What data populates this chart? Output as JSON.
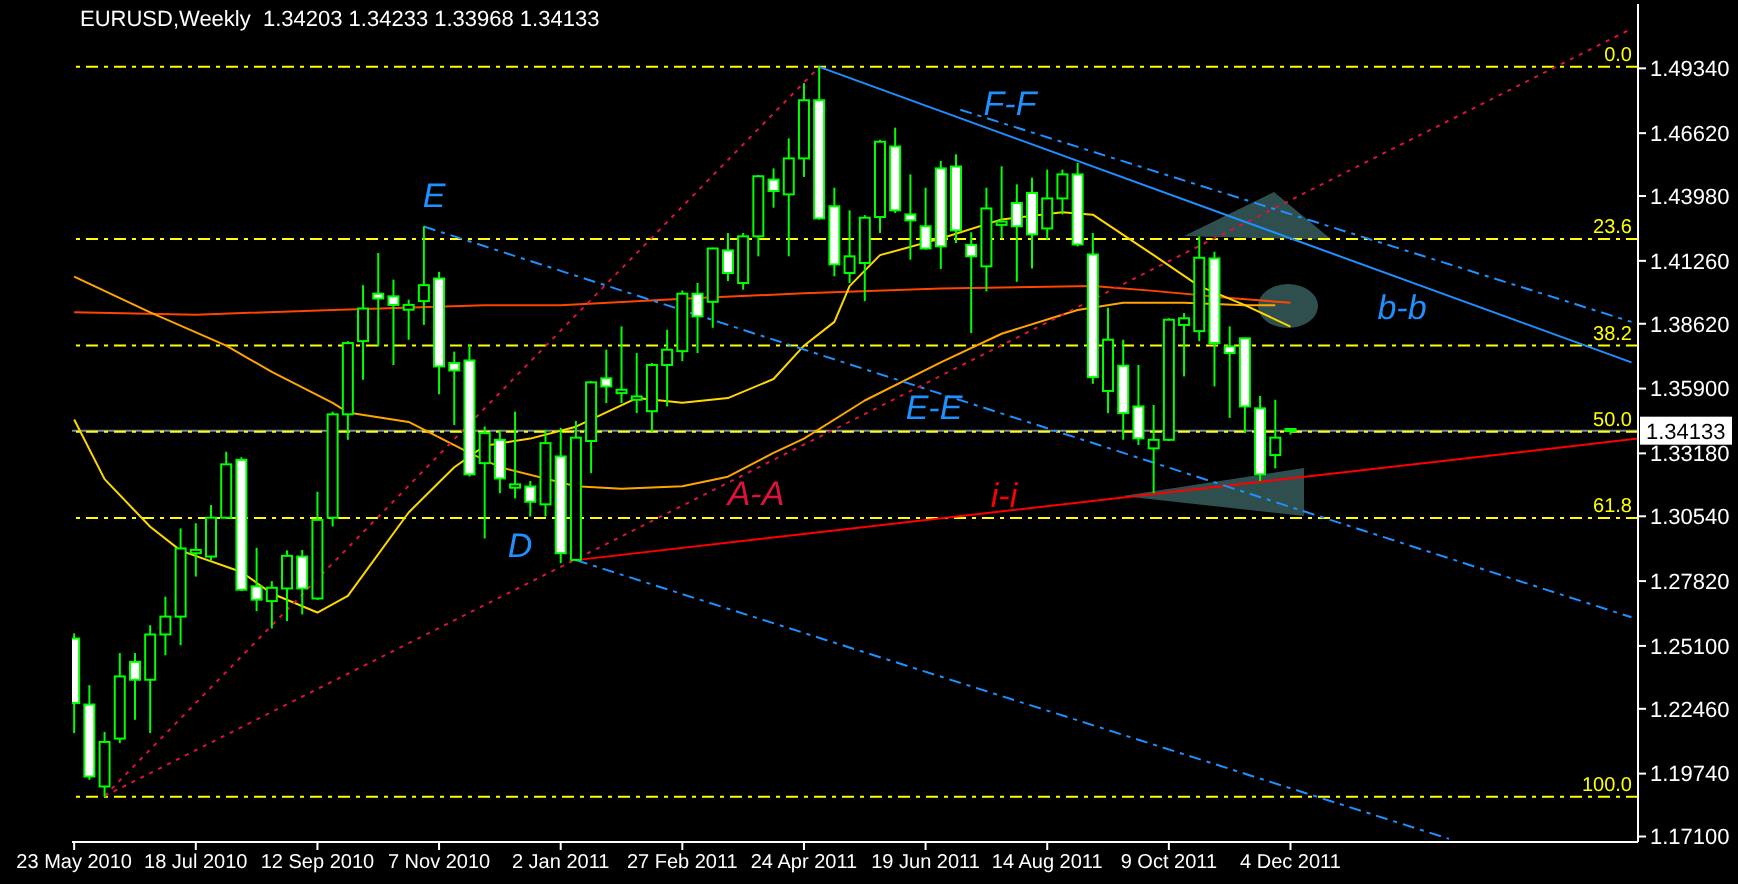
{
  "chart_data": {
    "type": "candlestick",
    "title": "EURUSD,Weekly  1.34203 1.34233 1.33968 1.34133",
    "color": "#00ff00",
    "marker": "none",
    "x": [
      "2010-05-23",
      "2010-05-30",
      "2010-06-06",
      "2010-06-13",
      "2010-06-20",
      "2010-06-27",
      "2010-07-04",
      "2010-07-11",
      "2010-07-18",
      "2010-07-25",
      "2010-08-01",
      "2010-08-08",
      "2010-08-15",
      "2010-08-22",
      "2010-08-29",
      "2010-09-05",
      "2010-09-12",
      "2010-09-19",
      "2010-09-26",
      "2010-10-03",
      "2010-10-10",
      "2010-10-17",
      "2010-10-24",
      "2010-10-31",
      "2010-11-07",
      "2010-11-14",
      "2010-11-21",
      "2010-11-28",
      "2010-12-05",
      "2010-12-12",
      "2010-12-19",
      "2010-12-26",
      "2011-01-02",
      "2011-01-09",
      "2011-01-16",
      "2011-01-23",
      "2011-01-30",
      "2011-02-06",
      "2011-02-13",
      "2011-02-20",
      "2011-02-27",
      "2011-03-06",
      "2011-03-13",
      "2011-03-20",
      "2011-03-27",
      "2011-04-03",
      "2011-04-10",
      "2011-04-17",
      "2011-04-24",
      "2011-05-01",
      "2011-05-08",
      "2011-05-15",
      "2011-05-22",
      "2011-05-29",
      "2011-06-05",
      "2011-06-12",
      "2011-06-19",
      "2011-06-26",
      "2011-07-03",
      "2011-07-10",
      "2011-07-17",
      "2011-07-24",
      "2011-07-31",
      "2011-08-07",
      "2011-08-14",
      "2011-08-21",
      "2011-08-28",
      "2011-09-04",
      "2011-09-11",
      "2011-09-18",
      "2011-09-25",
      "2011-10-02",
      "2011-10-09",
      "2011-10-16",
      "2011-10-23",
      "2011-10-30",
      "2011-11-06",
      "2011-11-13",
      "2011-11-20",
      "2011-11-27",
      "2011-12-04"
    ],
    "ohlc": [
      [
        1.2541,
        1.2563,
        1.2144,
        1.227
      ],
      [
        1.2264,
        1.2345,
        1.1948,
        1.1962
      ],
      [
        1.192,
        1.2149,
        1.1876,
        1.2107
      ],
      [
        1.2121,
        1.248,
        1.2102,
        1.2382
      ],
      [
        1.2443,
        1.248,
        1.22,
        1.2368
      ],
      [
        1.2368,
        1.2597,
        1.2144,
        1.2558
      ],
      [
        1.2558,
        1.2717,
        1.2471,
        1.2633
      ],
      [
        1.2633,
        1.3003,
        1.2513,
        1.2919
      ],
      [
        1.2899,
        1.3025,
        1.2801,
        1.2913
      ],
      [
        1.2885,
        1.3101,
        1.2866,
        1.3048
      ],
      [
        1.3048,
        1.3325,
        1.3045,
        1.3272
      ],
      [
        1.3291,
        1.3302,
        1.274,
        1.2746
      ],
      [
        1.276,
        1.2922,
        1.2656,
        1.2704
      ],
      [
        1.2698,
        1.2782,
        1.2583,
        1.2754
      ],
      [
        1.2751,
        1.2911,
        1.2614,
        1.2888
      ],
      [
        1.2885,
        1.2913,
        1.2642,
        1.2751
      ],
      [
        1.2709,
        1.3157,
        1.2703,
        1.3039
      ],
      [
        1.3048,
        1.3493,
        1.3011,
        1.3482
      ],
      [
        1.3482,
        1.3789,
        1.3375,
        1.3781
      ],
      [
        1.3789,
        1.4024,
        1.3627,
        1.3926
      ],
      [
        1.3988,
        1.4159,
        1.3767,
        1.3968
      ],
      [
        1.3977,
        1.4047,
        1.3689,
        1.3941
      ],
      [
        1.3921,
        1.3963,
        1.3795,
        1.3941
      ],
      [
        1.3957,
        1.4271,
        1.3857,
        1.4024
      ],
      [
        1.4052,
        1.408,
        1.3566,
        1.3683
      ],
      [
        1.3697,
        1.3745,
        1.3437,
        1.3666
      ],
      [
        1.3708,
        1.3775,
        1.3221,
        1.323
      ],
      [
        1.3277,
        1.3431,
        1.2961,
        1.3403
      ],
      [
        1.3375,
        1.3417,
        1.3151,
        1.3213
      ],
      [
        1.3174,
        1.3493,
        1.3129,
        1.3188
      ],
      [
        1.3179,
        1.3202,
        1.3053,
        1.3115
      ],
      [
        1.3104,
        1.3417,
        1.3053,
        1.3361
      ],
      [
        1.3305,
        1.3425,
        1.2857,
        1.2899
      ],
      [
        1.2871,
        1.3454,
        1.2866,
        1.3384
      ],
      [
        1.337,
        1.3621,
        1.3235,
        1.3616
      ],
      [
        1.3633,
        1.3753,
        1.3529,
        1.3599
      ],
      [
        1.3571,
        1.3851,
        1.3529,
        1.3585
      ],
      [
        1.3543,
        1.3739,
        1.3487,
        1.3557
      ],
      [
        1.3495,
        1.3697,
        1.3409,
        1.3689
      ],
      [
        1.3689,
        1.3837,
        1.3515,
        1.3753
      ],
      [
        1.3747,
        1.4002,
        1.3705,
        1.3988
      ],
      [
        1.3988,
        1.4033,
        1.3739,
        1.3893
      ],
      [
        1.3954,
        1.4181,
        1.3845,
        1.4178
      ],
      [
        1.417,
        1.4243,
        1.4041,
        1.4075
      ],
      [
        1.4033,
        1.4243,
        1.4005,
        1.4229
      ],
      [
        1.4229,
        1.4486,
        1.4145,
        1.4481
      ],
      [
        1.4467,
        1.4514,
        1.4349,
        1.4419
      ],
      [
        1.4405,
        1.464,
        1.4145,
        1.4556
      ],
      [
        1.4556,
        1.4872,
        1.4478,
        1.48
      ],
      [
        1.48,
        1.494,
        1.4299,
        1.4304
      ],
      [
        1.4355,
        1.4433,
        1.4061,
        1.4111
      ],
      [
        1.4075,
        1.4338,
        1.4033,
        1.4145
      ],
      [
        1.4117,
        1.4318,
        1.3957,
        1.4307
      ],
      [
        1.431,
        1.4634,
        1.4243,
        1.4626
      ],
      [
        1.4606,
        1.4685,
        1.4327,
        1.4338
      ],
      [
        1.4321,
        1.4489,
        1.4131,
        1.4296
      ],
      [
        1.4271,
        1.4433,
        1.4173,
        1.4178
      ],
      [
        1.4514,
        1.4545,
        1.4092,
        1.4187
      ],
      [
        1.4522,
        1.4573,
        1.4201,
        1.4254
      ],
      [
        1.4193,
        1.4246,
        1.3823,
        1.4145
      ],
      [
        1.4103,
        1.4433,
        1.3998,
        1.4346
      ],
      [
        1.4277,
        1.4523,
        1.422,
        1.4291
      ],
      [
        1.4369,
        1.4447,
        1.4038,
        1.4271
      ],
      [
        1.4411,
        1.4475,
        1.4094,
        1.4237
      ],
      [
        1.4262,
        1.4509,
        1.4215,
        1.4388
      ],
      [
        1.4388,
        1.4509,
        1.4321,
        1.4489
      ],
      [
        1.4489,
        1.4537,
        1.4187,
        1.4195
      ],
      [
        1.4153,
        1.4243,
        1.361,
        1.3638
      ],
      [
        1.358,
        1.3929,
        1.3487,
        1.3795
      ],
      [
        1.3686,
        1.3795,
        1.3375,
        1.3487
      ],
      [
        1.3515,
        1.3689,
        1.3353,
        1.3381
      ],
      [
        1.3339,
        1.3521,
        1.3151,
        1.3375
      ],
      [
        1.3375,
        1.3885,
        1.337,
        1.3879
      ],
      [
        1.3857,
        1.3907,
        1.3641,
        1.3885
      ],
      [
        1.3831,
        1.4229,
        1.3789,
        1.4139
      ],
      [
        1.4136,
        1.4164,
        1.3599,
        1.3781
      ],
      [
        1.3767,
        1.3851,
        1.3467,
        1.3739
      ],
      [
        1.3801,
        1.3803,
        1.3403,
        1.3515
      ],
      [
        1.3507,
        1.3559,
        1.3202,
        1.323
      ],
      [
        1.3311,
        1.3543,
        1.3255,
        1.3384
      ],
      [
        1.34203,
        1.34233,
        1.33968,
        1.34133
      ]
    ],
    "series": [
      {
        "type": "line",
        "color": "#ff4500",
        "line_style": "solid",
        "x": [
          "2010-05-23",
          "2010-07-18",
          "2010-09-19",
          "2010-11-28",
          "2011-01-02",
          "2011-03-06",
          "2011-04-24",
          "2011-06-26",
          "2011-09-04",
          "2011-10-02",
          "2011-11-06",
          "2011-12-04"
        ],
        "values": [
          1.391,
          1.39,
          1.392,
          1.394,
          1.394,
          1.397,
          1.399,
          1.401,
          1.402,
          1.4,
          1.397,
          1.395
        ]
      },
      {
        "type": "line",
        "color": "#ffa500",
        "line_style": "solid",
        "x": [
          "2010-05-23",
          "2010-06-27",
          "2010-08-01",
          "2010-08-22",
          "2010-09-19",
          "2010-09-26",
          "2010-10-24",
          "2010-11-21",
          "2010-12-05",
          "2011-01-09",
          "2011-01-30",
          "2011-02-27",
          "2011-03-20",
          "2011-04-10",
          "2011-04-24",
          "2011-05-22",
          "2011-06-26",
          "2011-07-24",
          "2011-08-28",
          "2011-09-18",
          "2011-10-16",
          "2011-11-13",
          "2011-11-27"
        ],
        "values": [
          1.406,
          1.391,
          1.377,
          1.366,
          1.353,
          1.349,
          1.345,
          1.332,
          1.326,
          1.318,
          1.317,
          1.318,
          1.322,
          1.332,
          1.338,
          1.354,
          1.37,
          1.382,
          1.392,
          1.395,
          1.395,
          1.394,
          1.394
        ]
      },
      {
        "type": "line",
        "color": "#ffd700",
        "line_style": "solid",
        "x": [
          "2010-05-23",
          "2010-06-06",
          "2010-06-27",
          "2010-07-11",
          "2010-08-08",
          "2010-08-22",
          "2010-09-12",
          "2010-09-26",
          "2010-10-24",
          "2010-11-14",
          "2010-11-28",
          "2010-12-19",
          "2011-01-09",
          "2011-01-23",
          "2011-02-06",
          "2011-02-27",
          "2011-03-20",
          "2011-04-10",
          "2011-04-24",
          "2011-05-08",
          "2011-05-15",
          "2011-05-29",
          "2011-06-26",
          "2011-07-24",
          "2011-08-21",
          "2011-09-04",
          "2011-10-02",
          "2011-10-23",
          "2011-11-13",
          "2011-12-04"
        ],
        "values": [
          1.346,
          1.321,
          1.301,
          1.291,
          1.282,
          1.273,
          1.265,
          1.272,
          1.307,
          1.326,
          1.335,
          1.338,
          1.343,
          1.349,
          1.355,
          1.353,
          1.355,
          1.363,
          1.377,
          1.387,
          1.402,
          1.415,
          1.422,
          1.43,
          1.433,
          1.432,
          1.415,
          1.402,
          1.394,
          1.385
        ]
      },
      {
        "type": "line",
        "color": "#dc143c",
        "line_style": "dotted",
        "x": [
          "2010-06-06",
          "2011-05-01"
        ],
        "values": [
          1.188,
          1.494
        ]
      },
      {
        "type": "line",
        "color": "#dc143c",
        "line_style": "dotted",
        "x": [
          "2010-06-06",
          "2012-05-09"
        ],
        "values": [
          1.188,
          1.51
        ]
      },
      {
        "type": "line",
        "color": "#ff0000",
        "line_style": "solid",
        "x": [
          "2011-01-09",
          "2012-05-12"
        ],
        "values": [
          1.287,
          1.338
        ]
      },
      {
        "type": "line",
        "color": "#1e90ff",
        "line_style": "dashed",
        "x": [
          "2010-10-31",
          "2012-05-09"
        ],
        "values": [
          1.427,
          1.263
        ]
      },
      {
        "type": "line",
        "color": "#1e90ff",
        "line_style": "dashed",
        "x": [
          "2011-01-09",
          "2012-02-15"
        ],
        "values": [
          1.287,
          1.17
        ]
      },
      {
        "type": "line",
        "color": "#1e90ff",
        "line_style": "solid",
        "x": [
          "2011-05-01",
          "2012-05-09"
        ],
        "values": [
          1.494,
          1.37
        ]
      },
      {
        "type": "line",
        "color": "#1e90ff",
        "line_style": "dashed",
        "x": [
          "2011-07-05",
          "2012-05-09"
        ],
        "values": [
          1.476,
          1.387
        ]
      }
    ],
    "xlim": [
      "2010-05-22",
      "2012-05-12"
    ],
    "xticks": [
      {
        "value": "2010-05-23",
        "label": "23 May 2010"
      },
      {
        "value": "2010-07-18",
        "label": "18 Jul 2010"
      },
      {
        "value": "2010-09-12",
        "label": "12 Sep 2010"
      },
      {
        "value": "2010-11-07",
        "label": "7 Nov 2010"
      },
      {
        "value": "2011-01-02",
        "label": "2 Jan 2011"
      },
      {
        "value": "2011-02-27",
        "label": "27 Feb 2011"
      },
      {
        "value": "2011-04-24",
        "label": "24 Apr 2011"
      },
      {
        "value": "2011-06-19",
        "label": "19 Jun 2011"
      },
      {
        "value": "2011-08-14",
        "label": "14 Aug 2011"
      },
      {
        "value": "2011-10-09",
        "label": "9 Oct 2011"
      },
      {
        "value": "2011-12-04",
        "label": "4 Dec 2011"
      }
    ],
    "ylim": [
      1.1687,
      1.5204
    ],
    "yticks": [
      {
        "value": 1.171,
        "label": "1.17100"
      },
      {
        "value": 1.1974,
        "label": "1.19740"
      },
      {
        "value": 1.2246,
        "label": "1.22460"
      },
      {
        "value": 1.251,
        "label": "1.25100"
      },
      {
        "value": 1.2782,
        "label": "1.27820"
      },
      {
        "value": 1.3054,
        "label": "1.30540"
      },
      {
        "value": 1.3318,
        "label": "1.33180"
      },
      {
        "value": 1.359,
        "label": "1.35900"
      },
      {
        "value": 1.3862,
        "label": "1.38620"
      },
      {
        "value": 1.4126,
        "label": "1.41260"
      },
      {
        "value": 1.4398,
        "label": "1.43980"
      },
      {
        "value": 1.4662,
        "label": "1.46620"
      },
      {
        "value": 1.4934,
        "label": "1.49340"
      }
    ],
    "ref_lines": [
      {
        "axis": "y",
        "value": 1.34133,
        "label": "1.34133",
        "color": "#778899",
        "line_style": "solid"
      },
      {
        "axis": "y2",
        "value": 0,
        "color": "#ffff00",
        "line_style": "dashed"
      },
      {
        "axis": "y2",
        "value": 23.6,
        "color": "#ffff00",
        "line_style": "dashed"
      },
      {
        "axis": "y2",
        "value": 38.2,
        "color": "#ffff00",
        "line_style": "dashed"
      },
      {
        "axis": "y2",
        "value": 50,
        "color": "#ffff00",
        "line_style": "dashed"
      },
      {
        "axis": "y2",
        "value": 61.8,
        "color": "#ffff00",
        "line_style": "dashed"
      },
      {
        "axis": "y2",
        "value": 100,
        "color": "#ffff00",
        "line_style": "dashed"
      }
    ],
    "y2lim": [
      106.2,
      -8.6
    ],
    "y2ticks": [
      {
        "value": 0,
        "label": "0.0"
      },
      {
        "value": 23.6,
        "label": "23.6"
      },
      {
        "value": 38.2,
        "label": "38.2"
      },
      {
        "value": 50,
        "label": "50.0"
      },
      {
        "value": 61.8,
        "label": "61.8"
      },
      {
        "value": 100,
        "label": "100.0"
      }
    ],
    "annotations": [
      "E",
      "D",
      "A-A",
      "E-E",
      "F-F",
      "i-i",
      "b-b"
    ]
  }
}
